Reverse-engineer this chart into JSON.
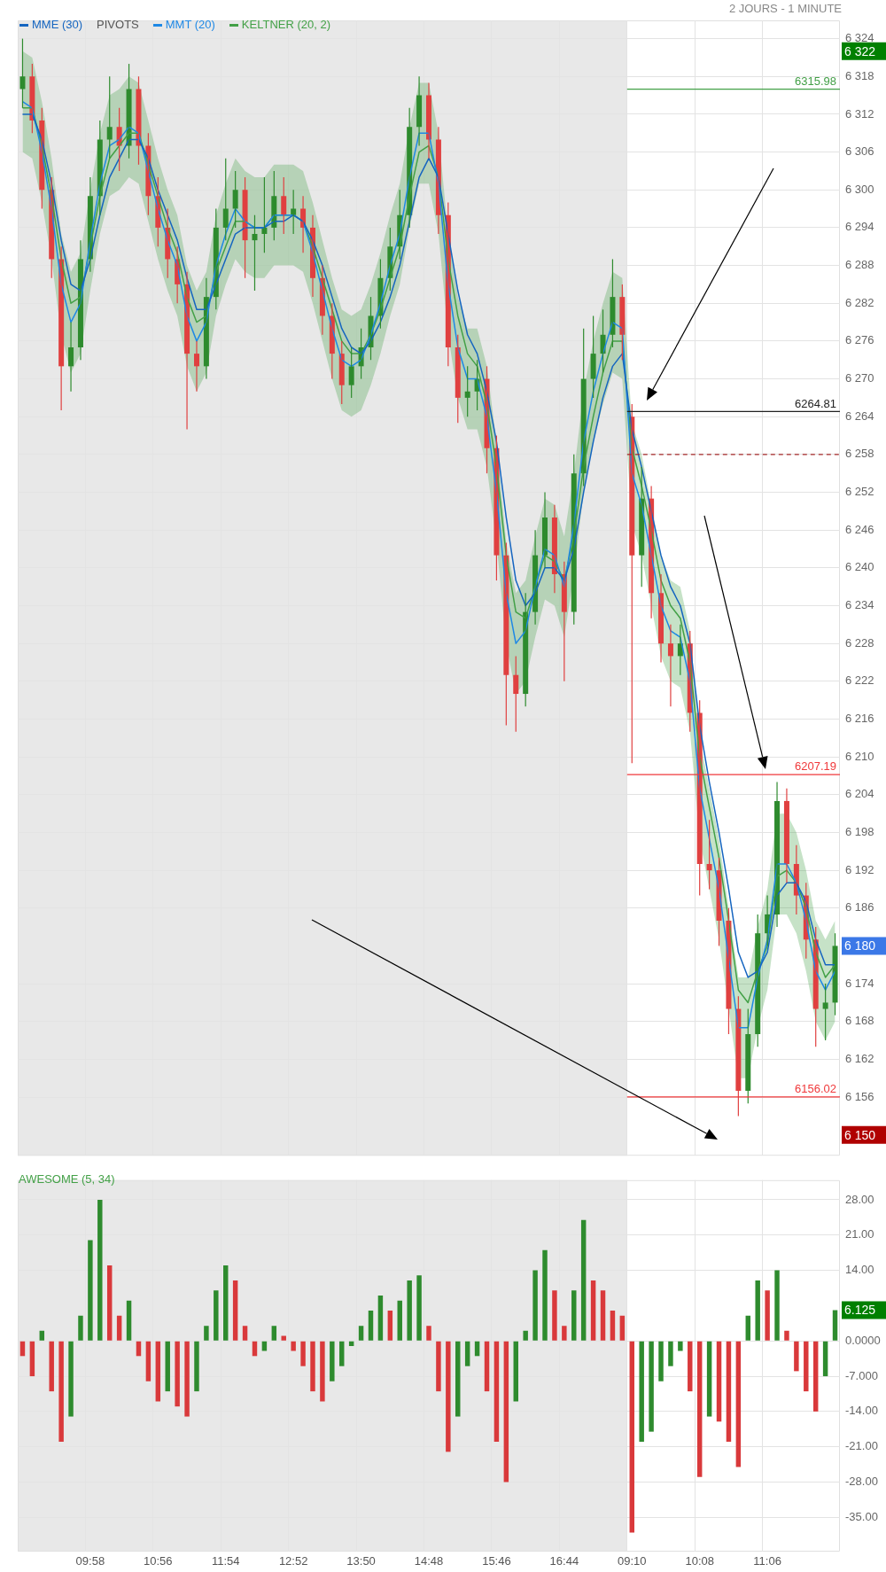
{
  "chart_data": [
    {
      "type": "candlestick",
      "subtitle": "2 JOURS - 1 MINUTE",
      "legend": "top left",
      "grid": true,
      "tick_labels": "y",
      "categories": [
        null,
        null,
        null,
        null,
        null,
        null,
        null,
        null,
        null,
        null,
        null,
        null,
        null,
        null,
        null,
        null,
        null,
        null,
        null,
        null,
        null,
        null,
        null,
        null,
        null,
        null,
        null,
        null,
        null,
        null,
        null,
        null,
        null,
        null,
        null,
        null,
        null,
        null,
        null,
        null,
        null,
        null,
        null,
        null,
        null,
        null,
        null,
        null,
        null,
        null,
        null,
        null,
        null,
        null,
        null,
        null,
        null,
        null,
        null,
        null,
        null,
        null,
        null,
        null,
        null,
        null,
        null,
        null,
        null,
        null,
        null,
        null,
        null,
        null,
        null,
        null,
        null,
        null,
        null,
        null,
        null,
        null,
        null,
        null,
        null
      ],
      "ohlc": [
        [
          6316,
          6324,
          6313,
          6318
        ],
        [
          6318,
          6320,
          6309,
          6311
        ],
        [
          6311,
          6313,
          6297,
          6300
        ],
        [
          6300,
          6302,
          6286,
          6289
        ],
        [
          6289,
          6291,
          6265,
          6272
        ],
        [
          6272,
          6279,
          6268,
          6275
        ],
        [
          6275,
          6292,
          6273,
          6289
        ],
        [
          6289,
          6302,
          6287,
          6299
        ],
        [
          6299,
          6311,
          6296,
          6308
        ],
        [
          6308,
          6318,
          6305,
          6310
        ],
        [
          6310,
          6313,
          6303,
          6307
        ],
        [
          6307,
          6320,
          6305,
          6316
        ],
        [
          6316,
          6318,
          6304,
          6307
        ],
        [
          6307,
          6309,
          6296,
          6299
        ],
        [
          6299,
          6302,
          6291,
          6294
        ],
        [
          6294,
          6297,
          6286,
          6289
        ],
        [
          6289,
          6291,
          6282,
          6285
        ],
        [
          6285,
          6287,
          6262,
          6274
        ],
        [
          6274,
          6276,
          6268,
          6272
        ],
        [
          6272,
          6286,
          6270,
          6283
        ],
        [
          6283,
          6297,
          6281,
          6294
        ],
        [
          6294,
          6305,
          6292,
          6297
        ],
        [
          6297,
          6303,
          6294,
          6300
        ],
        [
          6300,
          6302,
          6286,
          6292
        ],
        [
          6292,
          6296,
          6284,
          6293
        ],
        [
          6293,
          6302,
          6290,
          6294
        ],
        [
          6294,
          6303,
          6292,
          6299
        ],
        [
          6299,
          6302,
          6293,
          6296
        ],
        [
          6296,
          6300,
          6293,
          6297
        ],
        [
          6297,
          6299,
          6290,
          6294
        ],
        [
          6294,
          6296,
          6283,
          6286
        ],
        [
          6286,
          6288,
          6277,
          6280
        ],
        [
          6280,
          6282,
          6270,
          6274
        ],
        [
          6274,
          6276,
          6266,
          6269
        ],
        [
          6269,
          6275,
          6267,
          6272
        ],
        [
          6272,
          6278,
          6270,
          6275
        ],
        [
          6275,
          6283,
          6273,
          6280
        ],
        [
          6280,
          6289,
          6278,
          6286
        ],
        [
          6286,
          6294,
          6284,
          6291
        ],
        [
          6291,
          6300,
          6289,
          6296
        ],
        [
          6296,
          6313,
          6294,
          6310
        ],
        [
          6310,
          6318,
          6307,
          6315
        ],
        [
          6315,
          6317,
          6305,
          6308
        ],
        [
          6308,
          6310,
          6293,
          6296
        ],
        [
          6296,
          6298,
          6272,
          6275
        ],
        [
          6275,
          6277,
          6263,
          6267
        ],
        [
          6267,
          6272,
          6264,
          6268
        ],
        [
          6268,
          6273,
          6265,
          6270
        ],
        [
          6270,
          6272,
          6255,
          6259
        ],
        [
          6259,
          6261,
          6238,
          6242
        ],
        [
          6242,
          6244,
          6215,
          6223
        ],
        [
          6223,
          6226,
          6214,
          6220
        ],
        [
          6220,
          6236,
          6218,
          6233
        ],
        [
          6233,
          6246,
          6231,
          6242
        ],
        [
          6242,
          6252,
          6240,
          6248
        ],
        [
          6248,
          6250,
          6236,
          6239
        ],
        [
          6239,
          6241,
          6222,
          6233
        ],
        [
          6233,
          6258,
          6231,
          6255
        ],
        [
          6255,
          6278,
          6253,
          6270
        ],
        [
          6270,
          6280,
          6267,
          6274
        ],
        [
          6274,
          6281,
          6271,
          6277
        ],
        [
          6277,
          6289,
          6275,
          6283
        ],
        [
          6283,
          6285,
          6273,
          6277
        ],
        [
          6264,
          6266,
          6209,
          6242
        ],
        [
          6242,
          6256,
          6237,
          6251
        ],
        [
          6251,
          6253,
          6232,
          6236
        ],
        [
          6236,
          6239,
          6225,
          6228
        ],
        [
          6228,
          6231,
          6218,
          6226
        ],
        [
          6226,
          6231,
          6223,
          6228
        ],
        [
          6228,
          6230,
          6214,
          6217
        ],
        [
          6217,
          6219,
          6188,
          6193
        ],
        [
          6193,
          6200,
          6189,
          6192
        ],
        [
          6192,
          6194,
          6180,
          6184
        ],
        [
          6184,
          6186,
          6166,
          6170
        ],
        [
          6170,
          6172,
          6153,
          6157
        ],
        [
          6157,
          6170,
          6155,
          6166
        ],
        [
          6166,
          6185,
          6164,
          6182
        ],
        [
          6182,
          6188,
          6180,
          6185
        ],
        [
          6185,
          6206,
          6183,
          6203
        ],
        [
          6203,
          6205,
          6190,
          6193
        ],
        [
          6193,
          6196,
          6185,
          6188
        ],
        [
          6188,
          6190,
          6178,
          6181
        ],
        [
          6181,
          6183,
          6164,
          6170
        ],
        [
          6170,
          6174,
          6165,
          6171
        ],
        [
          6171,
          6182,
          6169,
          6180
        ]
      ],
      "series": [
        {
          "name": "MME (30)",
          "type": "line",
          "color": "#1565c0",
          "values": [
            6312,
            6312,
            6308,
            6301,
            6292,
            6285,
            6284,
            6289,
            6296,
            6302,
            6305,
            6308,
            6308,
            6305,
            6300,
            6296,
            6292,
            6286,
            6281,
            6281,
            6285,
            6289,
            6293,
            6294,
            6294,
            6294,
            6295,
            6295,
            6296,
            6295,
            6292,
            6288,
            6283,
            6278,
            6275,
            6274,
            6276,
            6279,
            6283,
            6288,
            6295,
            6302,
            6305,
            6302,
            6293,
            6284,
            6277,
            6274,
            6268,
            6260,
            6248,
            6238,
            6234,
            6236,
            6240,
            6240,
            6238,
            6243,
            6252,
            6260,
            6267,
            6272,
            6274,
            6262,
            6256,
            6249,
            6242,
            6237,
            6234,
            6228,
            6215,
            6206,
            6198,
            6189,
            6179,
            6175,
            6176,
            6179,
            6188,
            6190,
            6190,
            6187,
            6181,
            6177,
            6177
          ]
        },
        {
          "name": "MMT (20)",
          "type": "line",
          "color": "#1e88e5",
          "values": [
            6314,
            6313,
            6306,
            6297,
            6285,
            6279,
            6282,
            6292,
            6301,
            6307,
            6308,
            6310,
            6309,
            6303,
            6297,
            6292,
            6288,
            6280,
            6276,
            6279,
            6288,
            6293,
            6297,
            6295,
            6294,
            6294,
            6296,
            6296,
            6296,
            6295,
            6290,
            6284,
            6278,
            6273,
            6272,
            6273,
            6277,
            6282,
            6288,
            6293,
            6302,
            6309,
            6309,
            6301,
            6285,
            6275,
            6270,
            6270,
            6264,
            6252,
            6236,
            6228,
            6230,
            6237,
            6243,
            6242,
            6237,
            6247,
            6260,
            6268,
            6274,
            6279,
            6278,
            6255,
            6250,
            6242,
            6234,
            6230,
            6229,
            6222,
            6205,
            6197,
            6189,
            6178,
            6167,
            6167,
            6175,
            6181,
            6193,
            6193,
            6190,
            6184,
            6176,
            6173,
            6176
          ]
        },
        {
          "name": "KELTNER (20, 2)",
          "type": "line",
          "color": "#43a047",
          "values": [
            6313,
            6313,
            6307,
            6299,
            6289,
            6282,
            6283,
            6291,
            6299,
            6305,
            6307,
            6309,
            6309,
            6304,
            6299,
            6294,
            6290,
            6283,
            6279,
            6280,
            6287,
            6291,
            6295,
            6295,
            6294,
            6294,
            6296,
            6296,
            6296,
            6295,
            6291,
            6286,
            6281,
            6276,
            6274,
            6274,
            6277,
            6281,
            6286,
            6291,
            6299,
            6306,
            6307,
            6302,
            6289,
            6280,
            6274,
            6272,
            6266,
            6256,
            6242,
            6233,
            6232,
            6237,
            6242,
            6241,
            6238,
            6245,
            6256,
            6264,
            6271,
            6276,
            6276,
            6259,
            6253,
            6246,
            6238,
            6234,
            6232,
            6225,
            6210,
            6202,
            6194,
            6184,
            6173,
            6171,
            6176,
            6180,
            6191,
            6192,
            6190,
            6186,
            6179,
            6175,
            6177
          ],
          "lower": [
            6306,
            6305,
            6298,
            6289,
            6277,
            6271,
            6274,
            6284,
            6293,
            6299,
            6300,
            6302,
            6301,
            6295,
            6289,
            6284,
            6280,
            6272,
            6268,
            6271,
            6280,
            6285,
            6289,
            6287,
            6286,
            6286,
            6288,
            6288,
            6288,
            6287,
            6282,
            6276,
            6270,
            6265,
            6264,
            6265,
            6269,
            6274,
            6280,
            6285,
            6294,
            6301,
            6301,
            6293,
            6277,
            6267,
            6262,
            6262,
            6256,
            6244,
            6228,
            6220,
            6222,
            6229,
            6235,
            6234,
            6229,
            6239,
            6252,
            6260,
            6266,
            6271,
            6270,
            6247,
            6242,
            6234,
            6226,
            6222,
            6221,
            6214,
            6197,
            6189,
            6181,
            6170,
            6159,
            6159,
            6167,
            6173,
            6185,
            6185,
            6182,
            6176,
            6168,
            6165,
            6168
          ],
          "upper": [
            6322,
            6321,
            6314,
            6305,
            6293,
            6287,
            6290,
            6300,
            6309,
            6315,
            6316,
            6318,
            6317,
            6311,
            6305,
            6300,
            6296,
            6288,
            6284,
            6287,
            6296,
            6301,
            6305,
            6303,
            6302,
            6302,
            6304,
            6304,
            6304,
            6303,
            6298,
            6292,
            6286,
            6281,
            6280,
            6281,
            6285,
            6290,
            6296,
            6301,
            6310,
            6317,
            6317,
            6309,
            6293,
            6283,
            6278,
            6278,
            6272,
            6260,
            6244,
            6236,
            6238,
            6245,
            6251,
            6250,
            6245,
            6255,
            6268,
            6276,
            6282,
            6287,
            6286,
            6263,
            6258,
            6250,
            6242,
            6238,
            6237,
            6230,
            6213,
            6205,
            6197,
            6186,
            6175,
            6175,
            6183,
            6189,
            6201,
            6201,
            6198,
            6192,
            6184,
            6181,
            6184
          ]
        }
      ],
      "ylim": [
        6146.7,
        6326.9
      ],
      "yticks": [
        {
          "value": 6156,
          "label": "6 156"
        },
        {
          "value": 6162,
          "label": "6 162"
        },
        {
          "value": 6168,
          "label": "6 168"
        },
        {
          "value": 6174,
          "label": "6 174"
        },
        {
          "value": 6186,
          "label": "6 186"
        },
        {
          "value": 6192,
          "label": "6 192"
        },
        {
          "value": 6198,
          "label": "6 198"
        },
        {
          "value": 6204,
          "label": "6 204"
        },
        {
          "value": 6210,
          "label": "6 210"
        },
        {
          "value": 6216,
          "label": "6 216"
        },
        {
          "value": 6222,
          "label": "6 222"
        },
        {
          "value": 6228,
          "label": "6 228"
        },
        {
          "value": 6234,
          "label": "6 234"
        },
        {
          "value": 6240,
          "label": "6 240"
        },
        {
          "value": 6246,
          "label": "6 246"
        },
        {
          "value": 6252,
          "label": "6 252"
        },
        {
          "value": 6258,
          "label": "6 258"
        },
        {
          "value": 6264,
          "label": "6 264"
        },
        {
          "value": 6270,
          "label": "6 270"
        },
        {
          "value": 6276,
          "label": "6 276"
        },
        {
          "value": 6282,
          "label": "6 282"
        },
        {
          "value": 6288,
          "label": "6 288"
        },
        {
          "value": 6294,
          "label": "6 294"
        },
        {
          "value": 6300,
          "label": "6 300"
        },
        {
          "value": 6306,
          "label": "6 306"
        },
        {
          "value": 6312,
          "label": "6 312"
        },
        {
          "value": 6318,
          "label": "6 318"
        },
        {
          "value": 6324,
          "label": "6 324"
        }
      ],
      "ref_lines": [
        {
          "axis": "y",
          "value": 6315.98,
          "label": "6315.98",
          "color": "#43a047"
        },
        {
          "axis": "y",
          "value": 6264.81,
          "label": "6264.81",
          "color": "#222222"
        },
        {
          "axis": "y",
          "value": 6258,
          "color": "#a52a2a",
          "line_style": "dashed"
        },
        {
          "axis": "y",
          "value": 6207.19,
          "label": "6207.19",
          "color": "#f0393b"
        },
        {
          "axis": "y",
          "value": 6156.02,
          "label": "6156.02",
          "color": "#f0393b"
        }
      ],
      "y2lim": [
        6146.7,
        6326.9
      ],
      "y2ticks": [
        {
          "value": 6322,
          "label": "6 322"
        },
        {
          "value": 6180,
          "label": "6 180"
        },
        {
          "value": 6150,
          "label": "6 150"
        }
      ],
      "annotations": [
        "PIVOTS"
      ]
    },
    {
      "type": "bar",
      "title": "AWESOME (5, 34)",
      "grid": true,
      "categories": [
        null,
        null,
        null,
        null,
        null,
        null,
        null,
        "09:58",
        null,
        null,
        null,
        null,
        null,
        null,
        "10:56",
        null,
        null,
        null,
        null,
        null,
        null,
        "11:54",
        null,
        null,
        null,
        null,
        null,
        null,
        "12:52",
        null,
        null,
        null,
        null,
        null,
        null,
        "13:50",
        null,
        null,
        null,
        null,
        null,
        null,
        "14:48",
        null,
        null,
        null,
        null,
        null,
        null,
        "15:46",
        null,
        null,
        null,
        null,
        null,
        null,
        "16:44",
        null,
        null,
        null,
        null,
        null,
        null,
        "09:10",
        null,
        null,
        null,
        null,
        null,
        null,
        "10:08",
        null,
        null,
        null,
        null,
        null,
        null,
        "11:06",
        null,
        null,
        null,
        null,
        null,
        null,
        null
      ],
      "values": [
        -3,
        -7,
        2,
        -10,
        -20,
        -15,
        5,
        20,
        28,
        15,
        5,
        8,
        -3,
        -8,
        -12,
        -10,
        -13,
        -15,
        -10,
        3,
        10,
        15,
        12,
        3,
        -3,
        -2,
        3,
        1,
        -2,
        -5,
        -10,
        -12,
        -8,
        -5,
        -1,
        3,
        6,
        9,
        6,
        8,
        12,
        13,
        3,
        -10,
        -22,
        -15,
        -5,
        -3,
        -10,
        -20,
        -28,
        -12,
        2,
        14,
        18,
        10,
        3,
        10,
        24,
        12,
        10,
        6,
        5,
        -38,
        -20,
        -18,
        -8,
        -5,
        -2,
        -10,
        -27,
        -15,
        -16,
        -20,
        -25,
        5,
        12,
        10,
        14,
        2,
        -6,
        -10,
        -14,
        -7,
        6.125
      ],
      "colors": [
        "#d9393b",
        "#d9393b",
        "#2e8b2e",
        "#d9393b",
        "#d9393b",
        "#2e8b2e",
        "#2e8b2e",
        "#2e8b2e",
        "#2e8b2e",
        "#d9393b",
        "#d9393b",
        "#2e8b2e",
        "#d9393b",
        "#d9393b",
        "#d9393b",
        "#2e8b2e",
        "#d9393b",
        "#d9393b",
        "#2e8b2e",
        "#2e8b2e",
        "#2e8b2e",
        "#2e8b2e",
        "#d9393b",
        "#d9393b",
        "#d9393b",
        "#2e8b2e",
        "#2e8b2e",
        "#d9393b",
        "#d9393b",
        "#d9393b",
        "#d9393b",
        "#d9393b",
        "#2e8b2e",
        "#2e8b2e",
        "#2e8b2e",
        "#2e8b2e",
        "#2e8b2e",
        "#2e8b2e",
        "#d9393b",
        "#2e8b2e",
        "#2e8b2e",
        "#2e8b2e",
        "#d9393b",
        "#d9393b",
        "#d9393b",
        "#2e8b2e",
        "#2e8b2e",
        "#2e8b2e",
        "#d9393b",
        "#d9393b",
        "#d9393b",
        "#2e8b2e",
        "#2e8b2e",
        "#2e8b2e",
        "#2e8b2e",
        "#d9393b",
        "#d9393b",
        "#2e8b2e",
        "#2e8b2e",
        "#d9393b",
        "#d9393b",
        "#d9393b",
        "#d9393b",
        "#d9393b",
        "#2e8b2e",
        "#2e8b2e",
        "#2e8b2e",
        "#2e8b2e",
        "#2e8b2e",
        "#d9393b",
        "#d9393b",
        "#2e8b2e",
        "#d9393b",
        "#d9393b",
        "#d9393b",
        "#2e8b2e",
        "#2e8b2e",
        "#d9393b",
        "#2e8b2e",
        "#d9393b",
        "#d9393b",
        "#d9393b",
        "#d9393b",
        "#2e8b2e",
        "#2e8b2e"
      ],
      "ylim": [
        -41.8,
        31.9
      ],
      "yticks": [
        {
          "value": 28,
          "label": "28.00"
        },
        {
          "value": 21,
          "label": "21.00"
        },
        {
          "value": 14,
          "label": "14.00"
        },
        {
          "value": 0,
          "label": "0.0000"
        },
        {
          "value": -7,
          "label": "-7.000"
        },
        {
          "value": -14,
          "label": "-14.00"
        },
        {
          "value": -21,
          "label": "-21.00"
        },
        {
          "value": -28,
          "label": "-28.00"
        },
        {
          "value": -35,
          "label": "-35.00"
        }
      ],
      "annotations": [
        "6.125"
      ]
    }
  ]
}
